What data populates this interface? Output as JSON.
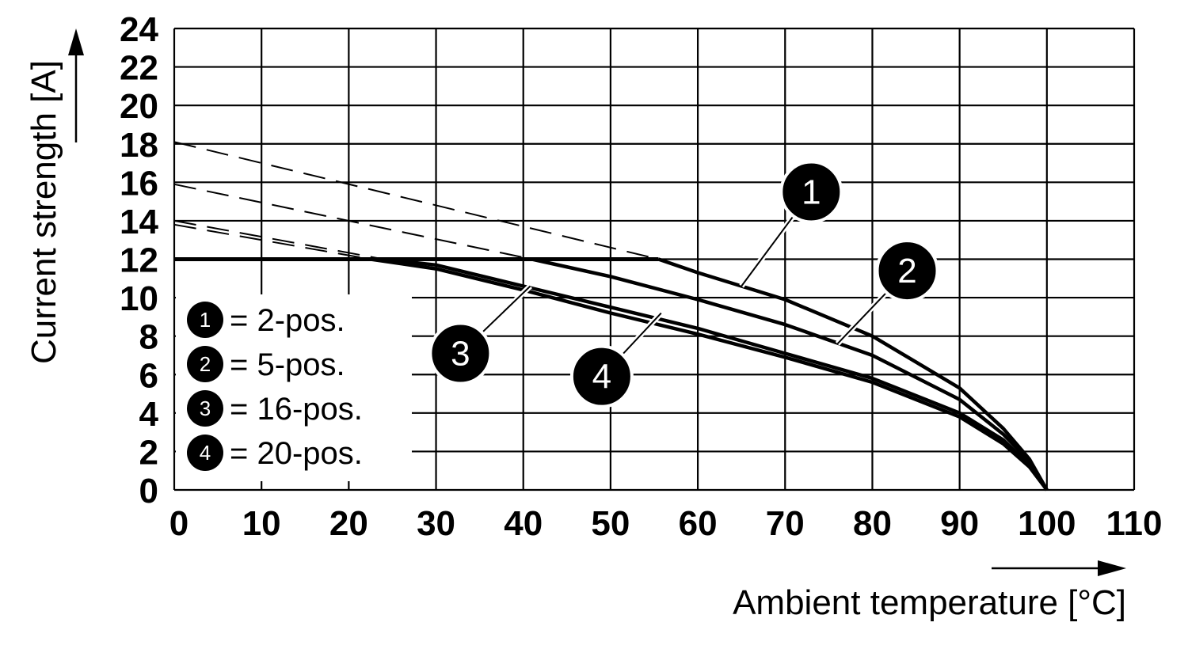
{
  "chart_data": {
    "type": "line",
    "xlabel": "Ambient temperature [°C]",
    "ylabel": "Current strength [A]",
    "xlim": [
      0,
      110
    ],
    "ylim": [
      0,
      24
    ],
    "x_ticks": [
      "0",
      "10",
      "20",
      "30",
      "40",
      "50",
      "60",
      "70",
      "80",
      "90",
      "100",
      "110"
    ],
    "y_ticks": [
      "0",
      "2",
      "4",
      "6",
      "8",
      "10",
      "12",
      "14",
      "16",
      "18",
      "20",
      "22",
      "24"
    ],
    "grid": true,
    "legend_position": "bottom-left",
    "limit_line": {
      "x": [
        0,
        55.5
      ],
      "y": [
        12,
        12
      ]
    },
    "series": [
      {
        "id": "1",
        "label": "= 2-pos.",
        "x": [
          0,
          55.5,
          60,
          70,
          80,
          90,
          95,
          98,
          100
        ],
        "y": [
          18.1,
          12,
          11.3,
          9.9,
          8.0,
          5.3,
          3.2,
          1.6,
          0
        ],
        "dashed_until_x": 55.5
      },
      {
        "id": "2",
        "label": "= 5-pos.",
        "x": [
          0,
          41,
          50,
          60,
          70,
          80,
          90,
          95,
          98,
          100
        ],
        "y": [
          15.9,
          12,
          11.1,
          9.9,
          8.6,
          7.0,
          4.7,
          2.9,
          1.5,
          0
        ],
        "dashed_until_x": 41
      },
      {
        "id": "3",
        "label": "= 16-pos.",
        "x": [
          0,
          24,
          30,
          40,
          50,
          60,
          70,
          80,
          90,
          95,
          98,
          100
        ],
        "y": [
          14.0,
          12,
          11.7,
          10.6,
          9.5,
          8.4,
          7.1,
          5.8,
          4.0,
          2.6,
          1.3,
          0
        ],
        "dashed_until_x": 24
      },
      {
        "id": "4",
        "label": "= 20-pos.",
        "x": [
          0,
          22.5,
          30,
          40,
          50,
          60,
          70,
          80,
          90,
          95,
          98,
          100
        ],
        "y": [
          13.8,
          12,
          11.5,
          10.4,
          9.2,
          8.1,
          6.9,
          5.6,
          3.8,
          2.4,
          1.2,
          0
        ],
        "dashed_until_x": 22.5
      }
    ],
    "annotations": [
      {
        "text": "1",
        "series": "1",
        "badge_at": [
          73,
          15.5
        ],
        "leader_to": [
          65,
          10.6
        ]
      },
      {
        "text": "2",
        "series": "2",
        "badge_at": [
          84,
          11.4
        ],
        "leader_to": [
          76,
          7.6
        ]
      },
      {
        "text": "3",
        "series": "3",
        "badge_at": [
          32.8,
          7.1
        ],
        "leader_to": [
          40.8,
          10.6
        ]
      },
      {
        "text": "4",
        "series": "4",
        "badge_at": [
          49,
          5.9
        ],
        "leader_to": [
          55.8,
          9.2
        ]
      }
    ]
  }
}
